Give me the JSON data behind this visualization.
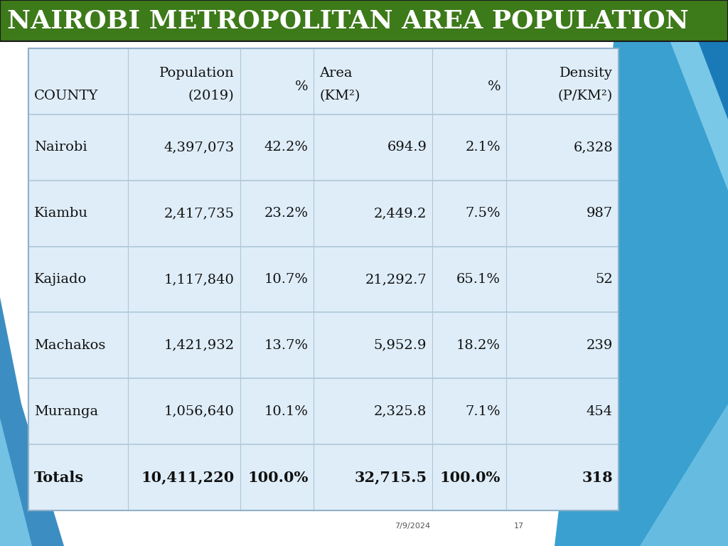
{
  "title": "NAIROBI METROPOLITAN AREA POPULATION",
  "title_bg_color": "#3d7a1a",
  "title_text_color": "#ffffff",
  "bg_color": "#ffffff",
  "table_bg_color": "#deedf8",
  "col_headers_line1": [
    "",
    "Population",
    "",
    "Area",
    "",
    "Density"
  ],
  "col_headers_line2": [
    "COUNTY",
    "(2019)",
    "%",
    "(KM²)",
    "%",
    "(P/KM²)"
  ],
  "rows": [
    [
      "Nairobi",
      "4,397,073",
      "42.2%",
      "694.9",
      "2.1%",
      "6,328"
    ],
    [
      "Kiambu",
      "2,417,735",
      "23.2%",
      "2,449.2",
      "7.5%",
      "987"
    ],
    [
      "Kajiado",
      "1,117,840",
      "10.7%",
      "21,292.7",
      "65.1%",
      "52"
    ],
    [
      "Machakos",
      "1,421,932",
      "13.7%",
      "5,952.9",
      "18.2%",
      "239"
    ],
    [
      "Muranga",
      "1,056,640",
      "10.1%",
      "2,325.8",
      "7.1%",
      "454"
    ]
  ],
  "totals": [
    "Totals",
    "10,411,220",
    "100.0%",
    "32,715.5",
    "100.0%",
    "318"
  ],
  "footer_date": "7/9/2024",
  "footer_page": "17",
  "col_alignments": [
    "left",
    "right",
    "right",
    "right",
    "right",
    "right"
  ],
  "header_font_size": 14,
  "data_font_size": 14,
  "totals_font_size": 15,
  "title_font_size": 26,
  "accent_blue_dark": "#1a7ab8",
  "accent_blue_mid": "#3aa0d0",
  "accent_blue_light": "#7ac8e8",
  "accent_blue_pale": "#a8daf0"
}
